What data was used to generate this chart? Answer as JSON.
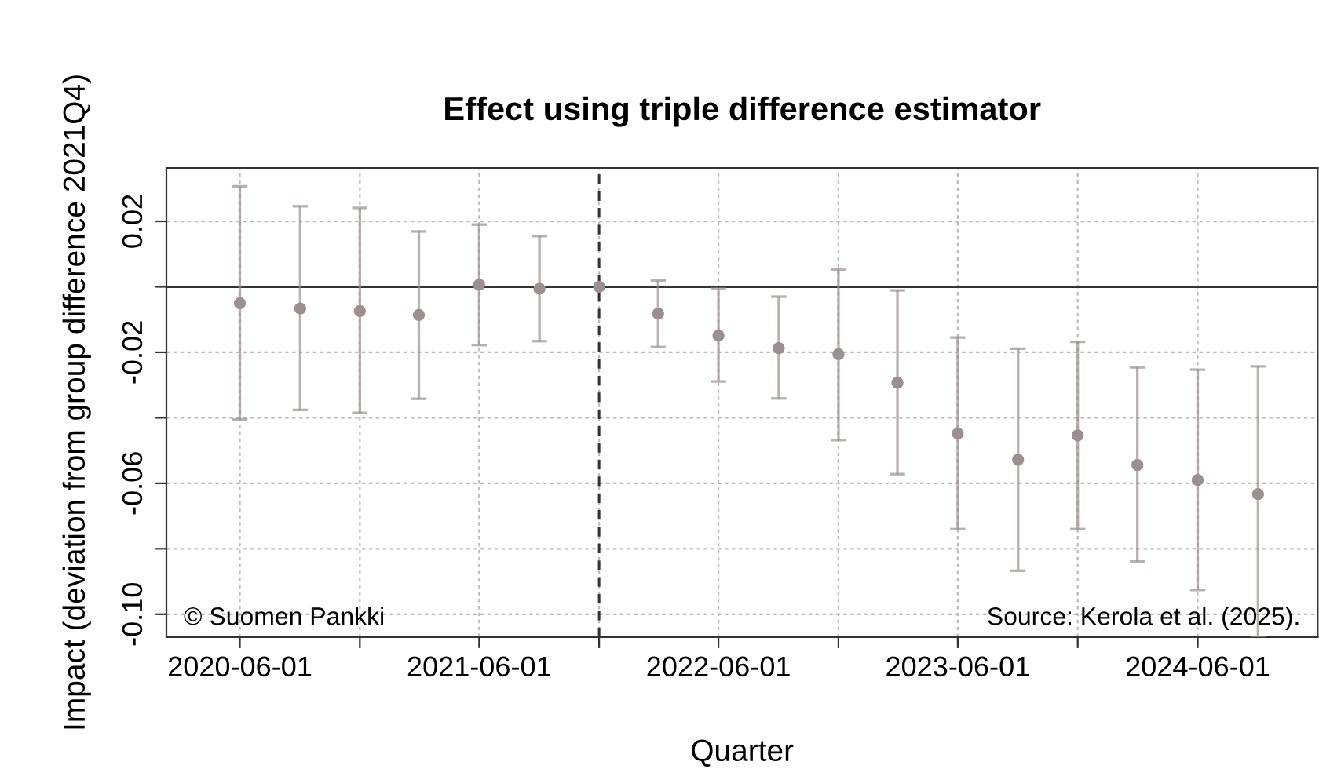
{
  "chart_data": {
    "type": "scatter",
    "title": "Effect using triple difference estimator",
    "xlabel": "Quarter",
    "ylabel": "Impact (deviation from group difference 2021Q4)",
    "x": [
      "2020-06-01",
      "2020-09-01",
      "2020-12-01",
      "2021-03-01",
      "2021-06-01",
      "2021-09-01",
      "2021-12-01",
      "2022-03-01",
      "2022-06-01",
      "2022-09-01",
      "2022-12-01",
      "2023-03-01",
      "2023-06-01",
      "2023-09-01",
      "2023-12-01",
      "2024-03-01",
      "2024-06-01",
      "2024-09-01"
    ],
    "series": [
      {
        "color": "#9b8f8f",
        "values": [
          -0.005,
          -0.0066,
          -0.0074,
          -0.0086,
          0.0006,
          -0.0006,
          0,
          -0.0082,
          -0.0149,
          -0.0187,
          -0.0206,
          -0.0293,
          -0.0448,
          -0.0528,
          -0.0454,
          -0.0544,
          -0.059,
          -0.0633
        ],
        "errors": [
          [
            -0.0405,
            0.0307
          ],
          [
            -0.0376,
            0.0246
          ],
          [
            -0.0385,
            0.0241
          ],
          [
            -0.0342,
            0.0169
          ],
          [
            -0.0178,
            0.019
          ],
          [
            -0.0166,
            0.0155
          ],
          null,
          [
            -0.0184,
            0.0019
          ],
          [
            -0.0289,
            -0.0006
          ],
          [
            -0.0341,
            -0.003
          ],
          [
            -0.0468,
            0.0053
          ],
          [
            -0.0572,
            -0.0011
          ],
          [
            -0.074,
            -0.0155
          ],
          [
            -0.0867,
            -0.0189
          ],
          [
            -0.074,
            -0.0168
          ],
          [
            -0.0839,
            -0.0246
          ],
          [
            -0.0926,
            -0.0253
          ],
          [
            -0.107,
            -0.0243
          ]
        ]
      }
    ],
    "marker": "circle",
    "xlim": [
      "2020-02-10",
      "2024-12-01"
    ],
    "xticks": [
      {
        "value": "2020-06-01",
        "label": "2020-06-01"
      },
      {
        "value": "2020-12-01",
        "label": null
      },
      {
        "value": "2021-06-01",
        "label": "2021-06-01"
      },
      {
        "value": "2021-12-01",
        "label": null
      },
      {
        "value": "2022-06-01",
        "label": "2022-06-01"
      },
      {
        "value": "2022-12-01",
        "label": null
      },
      {
        "value": "2023-06-01",
        "label": "2023-06-01"
      },
      {
        "value": "2023-12-01",
        "label": null
      },
      {
        "value": "2024-06-01",
        "label": "2024-06-01"
      }
    ],
    "ylim": [
      -0.107,
      0.0363
    ],
    "yticks": [
      {
        "value": 0.02,
        "label": "0.02"
      },
      {
        "value": 0,
        "label": null
      },
      {
        "value": -0.02,
        "label": "-0.02"
      },
      {
        "value": -0.04,
        "label": null
      },
      {
        "value": -0.06,
        "label": "-0.06"
      },
      {
        "value": -0.08,
        "label": null
      },
      {
        "value": -0.1,
        "label": "-0.10"
      }
    ],
    "grid": true,
    "ref_lines": [
      {
        "axis": "y",
        "value": 0,
        "color": "#333333",
        "line_style": "solid"
      },
      {
        "axis": "x",
        "value": "2021-12-01",
        "color": "#333333",
        "line_style": "dashed"
      }
    ],
    "annotations": [
      "© Suomen Pankki",
      "Source: Kerola et al. (2025)."
    ]
  }
}
